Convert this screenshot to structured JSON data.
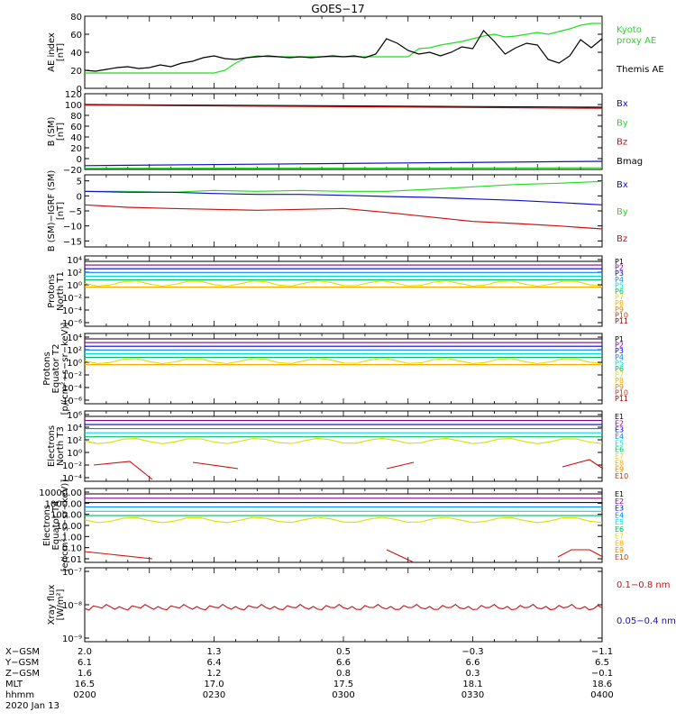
{
  "title": "GOES−17",
  "colors": {
    "black": "#000000",
    "green": "#22dd22",
    "blue": "#1010cc",
    "red": "#cc1010",
    "proton_bands": [
      "#000000",
      "#880088",
      "#0000cc",
      "#0088ff",
      "#00dddd",
      "#00bb66",
      "#dddd00",
      "#ffaa00",
      "#dd8800",
      "#cc3300",
      "#aa0000"
    ],
    "electron_bands": [
      "#000000",
      "#880088",
      "#0000cc",
      "#0088ff",
      "#00dddd",
      "#00bb66",
      "#dddd00",
      "#ffaa00",
      "#dd8800",
      "#cc3300",
      "#aa0000"
    ]
  },
  "chart_data": [
    {
      "type": "line",
      "ylabel": [
        "AE index",
        "[nT]"
      ],
      "ylim": [
        0,
        80
      ],
      "ticks": [
        "80",
        "60",
        "40",
        "20",
        "0"
      ],
      "tick_values": [
        80,
        60,
        40,
        20,
        0
      ],
      "legend": [
        {
          "name": "Kyoto",
          "color": "green"
        },
        {
          "name": "proxy AE",
          "color": "green"
        },
        {
          "name": "Themis AE",
          "color": "black"
        }
      ],
      "series": [
        {
          "name": "Kyoto proxy AE",
          "color": "green",
          "x": [
            0,
            5,
            10,
            15,
            20,
            25,
            30,
            35,
            40,
            45,
            50,
            55,
            60,
            65,
            70,
            75,
            80,
            85,
            90,
            95,
            100,
            105,
            110,
            115,
            120
          ],
          "values": [
            17,
            17,
            17,
            17,
            17,
            17,
            17,
            17,
            17,
            17,
            17,
            17,
            17,
            20,
            28,
            34,
            36,
            35,
            35,
            35,
            35,
            35,
            35,
            35,
            35
          ]
        },
        {
          "name": "Themis AE",
          "color": "black",
          "x": [
            0,
            5,
            10,
            15,
            20,
            25,
            30,
            35,
            40,
            45,
            50,
            55,
            60,
            65,
            70,
            75,
            80,
            85,
            90,
            95,
            100,
            105,
            110,
            115,
            120
          ],
          "values": [
            20,
            19,
            21,
            23,
            24,
            22,
            23,
            26,
            24,
            28,
            30,
            34,
            36,
            33,
            32,
            34,
            35,
            36,
            35,
            34,
            35,
            34,
            35,
            36,
            35
          ]
        }
      ],
      "series2": [
        {
          "name": "Kyoto proxy AE",
          "color": "green",
          "x": [
            120,
            125,
            130,
            135,
            140,
            145,
            150,
            155,
            160,
            165,
            170,
            175,
            180,
            185,
            190,
            195,
            200,
            205,
            210,
            215,
            220,
            225,
            230,
            235,
            240
          ],
          "values": [
            35,
            35,
            35,
            35,
            35,
            35,
            35,
            44,
            45,
            48,
            50,
            52,
            55,
            58,
            60,
            57,
            58,
            60,
            62,
            60,
            63,
            66,
            70,
            72,
            72
          ]
        },
        {
          "name": "Themis AE",
          "color": "black",
          "x": [
            120,
            125,
            130,
            135,
            140,
            145,
            150,
            155,
            160,
            165,
            170,
            175,
            180,
            185,
            190,
            195,
            200,
            205,
            210,
            215,
            220,
            225,
            230,
            235,
            240
          ],
          "values": [
            35,
            36,
            34,
            38,
            55,
            50,
            42,
            38,
            40,
            36,
            40,
            46,
            44,
            64,
            52,
            38,
            45,
            50,
            48,
            32,
            28,
            36,
            54,
            45,
            55
          ]
        }
      ]
    },
    {
      "type": "line",
      "ylabel": [
        "B (SM)",
        "[nT]"
      ],
      "ylim": [
        -20,
        120
      ],
      "ticks": [
        "120",
        "100",
        "80",
        "60",
        "40",
        "20",
        "0",
        "−20"
      ],
      "tick_values": [
        120,
        100,
        80,
        60,
        40,
        20,
        0,
        -20
      ],
      "legend": [
        {
          "name": "Bx",
          "color": "blue"
        },
        {
          "name": "By",
          "color": "green"
        },
        {
          "name": "Bz",
          "color": "red"
        },
        {
          "name": "Bmag",
          "color": "black"
        }
      ],
      "series": [
        {
          "name": "Bmag",
          "color": "black",
          "x": [
            0,
            240
          ],
          "values": [
            100,
            95
          ]
        },
        {
          "name": "Bz",
          "color": "red",
          "x": [
            0,
            240
          ],
          "values": [
            99,
            93
          ]
        },
        {
          "name": "Bx",
          "color": "blue",
          "x": [
            0,
            240
          ],
          "values": [
            -13,
            -5
          ]
        },
        {
          "name": "By",
          "color": "green",
          "x": [
            0,
            240
          ],
          "values": [
            -18,
            -17
          ]
        }
      ]
    },
    {
      "type": "line",
      "ylabel": [
        "B (SM)−IGRF (SM)",
        "[nT]"
      ],
      "ylim": [
        -17,
        7
      ],
      "ticks": [
        "5",
        "0",
        "−5",
        "−10",
        "−15"
      ],
      "tick_values": [
        5,
        0,
        -5,
        -10,
        -15
      ],
      "legend": [
        {
          "name": "Bx",
          "color": "blue"
        },
        {
          "name": "By",
          "color": "green"
        },
        {
          "name": "Bz",
          "color": "red"
        }
      ],
      "series": [
        {
          "name": "By",
          "color": "green",
          "x": [
            0,
            20,
            40,
            60,
            80,
            100,
            120,
            140,
            160,
            180,
            200,
            220,
            240
          ],
          "values": [
            1.5,
            1.5,
            1.2,
            1.8,
            1.5,
            1.8,
            1.5,
            1.5,
            2.2,
            3,
            3.8,
            4.2,
            4.8
          ]
        },
        {
          "name": "Bx",
          "color": "blue",
          "x": [
            0,
            20,
            40,
            60,
            80,
            100,
            120,
            140,
            160,
            180,
            200,
            220,
            240
          ],
          "values": [
            1.5,
            1.2,
            1.2,
            0.8,
            0.5,
            0.5,
            0.2,
            -0.2,
            -0.5,
            -1,
            -1.5,
            -2.2,
            -3
          ]
        },
        {
          "name": "Bz",
          "color": "red",
          "x": [
            0,
            20,
            40,
            60,
            80,
            100,
            120,
            140,
            160,
            180,
            200,
            220,
            240
          ],
          "values": [
            -3,
            -3.8,
            -4.2,
            -4.5,
            -4.8,
            -4.5,
            -4.2,
            -5.5,
            -7,
            -8.5,
            -9.2,
            -10,
            -11
          ]
        }
      ]
    }
  ],
  "proton_panels": [
    {
      "ylabel": [
        "Protons",
        "North T1"
      ],
      "ticks": [
        "10⁴",
        "10²",
        "10⁰",
        "10⁻²",
        "10⁻⁴",
        "10⁻⁶"
      ],
      "labels": [
        "P1",
        "P2",
        "P3",
        "P4",
        "P5",
        "P6",
        "P7",
        "P8",
        "P9",
        "P10",
        "P11"
      ]
    },
    {
      "ylabel": [
        "Protons",
        "Equator T2",
        "[p/(cm²−s−sr−keV)]"
      ],
      "ticks": [
        "10⁴",
        "10²",
        "10⁰",
        "10⁻²",
        "10⁻⁴",
        "10⁻⁶"
      ],
      "labels": [
        "P1",
        "P2",
        "P3",
        "P4",
        "P5",
        "P6",
        "P7",
        "P8",
        "P9",
        "P10",
        "P11"
      ]
    }
  ],
  "electron_panels": [
    {
      "ylabel": [
        "Electrons",
        "North T3"
      ],
      "ticks": [
        "10⁶",
        "10⁴",
        "10²",
        "10⁰",
        "10⁻²",
        "10⁻⁴"
      ],
      "labels": [
        "E1",
        "E2",
        "E3",
        "E4",
        "E5",
        "E6",
        "E7",
        "E8",
        "E9",
        "E10"
      ]
    },
    {
      "ylabel": [
        "Electrons",
        "Equator T4",
        "[e/(cm²−s−sr−keV)]"
      ],
      "ticks": [
        "10000.00",
        "1000.00",
        "100.00",
        "10.00",
        "1.00",
        "0.10",
        "0.01"
      ],
      "labels": [
        "E1",
        "E2",
        "E3",
        "E4",
        "E5",
        "E6",
        "E7",
        "E8",
        "E9",
        "E10"
      ]
    }
  ],
  "xray_panel": {
    "ylabel": [
      "Xray flux",
      "[W/m²]"
    ],
    "ticks": [
      "10⁻⁷",
      "10⁻⁸",
      "10⁻⁹"
    ],
    "legend": [
      {
        "name": "0.1−0.8 nm",
        "color": "red"
      },
      {
        "name": "0.05−0.4 nm",
        "color": "blue"
      }
    ]
  },
  "x_axis": {
    "row_labels": [
      "X−GSM",
      "Y−GSM",
      "Z−GSM",
      "MLT",
      "hhmm",
      "2020 Jan 13"
    ],
    "columns": [
      {
        "x": 0,
        "values": [
          "2.0",
          "6.1",
          "1.6",
          "16.5",
          "0200"
        ]
      },
      {
        "x": 60,
        "values": [
          "1.3",
          "6.4",
          "1.2",
          "17.0",
          "0230"
        ]
      },
      {
        "x": 120,
        "values": [
          "0.5",
          "6.6",
          "0.8",
          "17.5",
          "0300"
        ]
      },
      {
        "x": 180,
        "values": [
          "−0.3",
          "6.6",
          "0.3",
          "18.1",
          "0330"
        ]
      },
      {
        "x": 240,
        "values": [
          "−1.1",
          "6.5",
          "−0.1",
          "18.6",
          "0400"
        ]
      }
    ]
  }
}
